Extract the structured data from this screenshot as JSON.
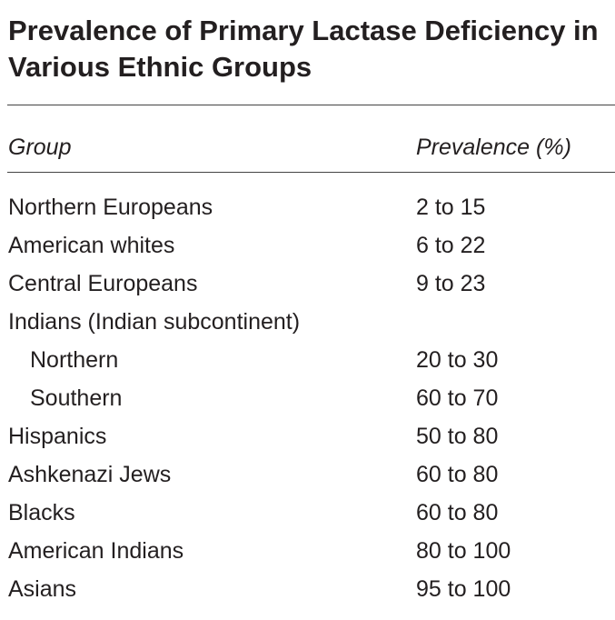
{
  "title": "Prevalence of Primary Lactase Deficiency in Various Ethnic Groups",
  "headers": {
    "group": "Group",
    "prevalence": "Prevalence (%)"
  },
  "rows": [
    {
      "group": "Northern Europeans",
      "prevalence": "2 to 15",
      "indent": false
    },
    {
      "group": "American whites",
      "prevalence": "6 to 22",
      "indent": false
    },
    {
      "group": "Central Europeans",
      "prevalence": "9 to 23",
      "indent": false
    },
    {
      "group": "Indians (Indian subcontinent)",
      "prevalence": "",
      "indent": false
    },
    {
      "group": "Northern",
      "prevalence": "20 to 30",
      "indent": true
    },
    {
      "group": "Southern",
      "prevalence": "60 to 70",
      "indent": true
    },
    {
      "group": "Hispanics",
      "prevalence": "50 to 80",
      "indent": false
    },
    {
      "group": "Ashkenazi Jews",
      "prevalence": "60 to 80",
      "indent": false
    },
    {
      "group": "Blacks",
      "prevalence": "60 to 80",
      "indent": false
    },
    {
      "group": "American Indians",
      "prevalence": "80 to 100",
      "indent": false
    },
    {
      "group": "Asians",
      "prevalence": "95 to 100",
      "indent": false
    }
  ]
}
